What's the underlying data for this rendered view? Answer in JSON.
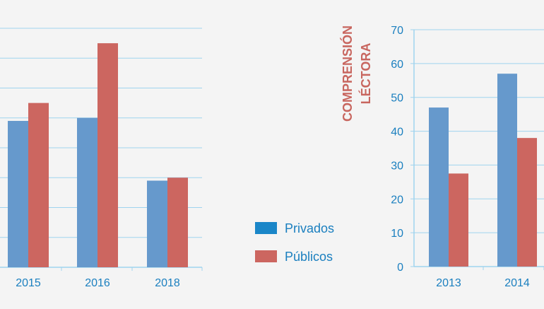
{
  "colors": {
    "background": "#f4f4f4",
    "privados": "#6699cc",
    "publicos": "#cc6660",
    "legend_privados": "#1a86c8",
    "grid": "#9fd3ee",
    "axis_text": "#1a7fbf",
    "title_text": "#c8665f"
  },
  "legend": {
    "items": [
      {
        "label": "Privados",
        "color": "#1a86c8"
      },
      {
        "label": "Públicos",
        "color": "#cc6660"
      }
    ]
  },
  "chart_data": [
    {
      "type": "bar",
      "title": "",
      "categories": [
        "2015",
        "2016",
        "2018"
      ],
      "series": [
        {
          "name": "Privados",
          "values": [
            49,
            50,
            29
          ]
        },
        {
          "name": "Públicos",
          "values": [
            55,
            75,
            30
          ]
        }
      ],
      "ylim": [
        0,
        80
      ],
      "grid": true,
      "y_ticks_visible": false
    },
    {
      "type": "bar",
      "title": "COMPRENSIÓN LÉCTORA",
      "categories": [
        "2013",
        "2014"
      ],
      "series": [
        {
          "name": "Privados",
          "values": [
            47,
            57
          ]
        },
        {
          "name": "Públicos",
          "values": [
            27.5,
            38
          ]
        }
      ],
      "ylim": [
        0,
        70
      ],
      "yticks": [
        0,
        10,
        20,
        30,
        40,
        50,
        60,
        70
      ],
      "grid": true,
      "legend_position": "left"
    }
  ]
}
